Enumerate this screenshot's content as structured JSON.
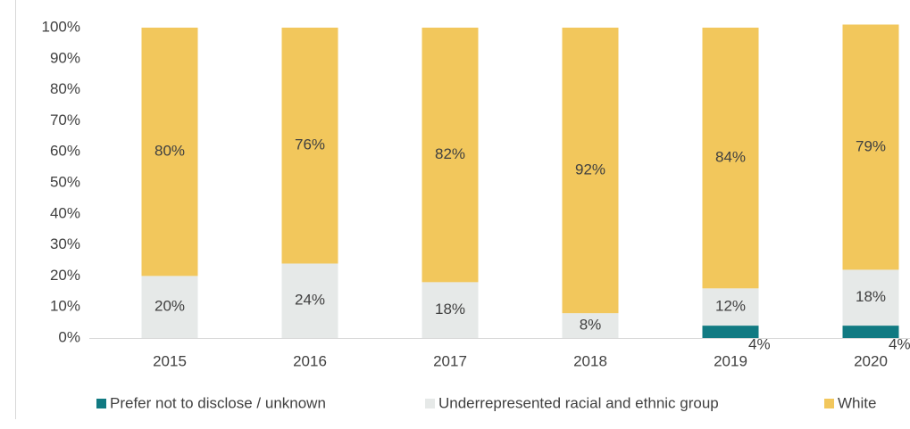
{
  "chart_data": {
    "type": "stacked_bar",
    "categories": [
      "2015",
      "2016",
      "2017",
      "2018",
      "2019",
      "2020"
    ],
    "series": [
      {
        "name": "Prefer not to disclose / unknown",
        "color": "#117a82",
        "values": [
          0,
          0,
          0,
          0,
          4,
          4
        ],
        "value_labels": [
          null,
          null,
          null,
          null,
          "4%",
          "4%"
        ]
      },
      {
        "name": "Underrepresented racial and ethnic group",
        "color": "#e6e9e8",
        "values": [
          20,
          24,
          18,
          8,
          12,
          18
        ],
        "value_labels": [
          "20%",
          "24%",
          "18%",
          "8%",
          "12%",
          "18%"
        ]
      },
      {
        "name": "White",
        "color": "#f2c75c",
        "values": [
          80,
          76,
          82,
          92,
          84,
          79
        ],
        "value_labels": [
          "80%",
          "76%",
          "82%",
          "92%",
          "84%",
          "79%"
        ]
      }
    ],
    "ylim": [
      0,
      100
    ],
    "yticks": [
      {
        "value": 0,
        "label": "0%"
      },
      {
        "value": 10,
        "label": "10%"
      },
      {
        "value": 20,
        "label": "20%"
      },
      {
        "value": 30,
        "label": "30%"
      },
      {
        "value": 40,
        "label": "40%"
      },
      {
        "value": 50,
        "label": "50%"
      },
      {
        "value": 60,
        "label": "60%"
      },
      {
        "value": 70,
        "label": "70%"
      },
      {
        "value": 80,
        "label": "80%"
      },
      {
        "value": 90,
        "label": "90%"
      },
      {
        "value": 100,
        "label": "100%"
      }
    ],
    "legend": "bottom"
  }
}
